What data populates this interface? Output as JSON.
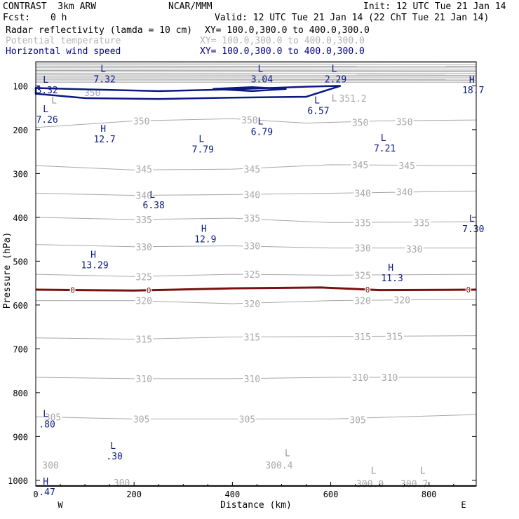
{
  "header": {
    "title": "CONTRAST  3km ARW",
    "source": "NCAR/MMM",
    "init": "Init: 12 UTC Tue 21 Jan 14",
    "fcst_label": "Fcst:",
    "fcst_value": "0 h",
    "valid": "Valid: 12 UTC Tue 21 Jan 14 (22 ChT Tue 21 Jan 14)"
  },
  "legend": [
    {
      "name": "Radar reflectivity (lamda = 10 cm)",
      "xy": "XY= 100.0,300.0 to 400.0,300.0",
      "color": "#000000"
    },
    {
      "name": "Potential temperature",
      "xy": "XY= 100.0,300.0 to 400.0,300.0",
      "color": "#b4b4b4"
    },
    {
      "name": "Horizontal wind speed",
      "xy": "XY= 100.0,300.0 to 400.0,300.0",
      "color": "#000080"
    }
  ],
  "colors": {
    "theta": "#a8a8a8",
    "wind": "#0a1a80",
    "zeroline": "#7a1010",
    "axis": "#000000"
  },
  "chart_data": {
    "type": "line",
    "xlabel": "Distance (km)",
    "ylabel": "Pressure (hPa)",
    "xlim": [
      0,
      896
    ],
    "ylim": [
      1013,
      45
    ],
    "y_scale": "linear, inverted",
    "xticks": [
      "0",
      "200",
      "400",
      "600",
      "800"
    ],
    "xtick_values": [
      0,
      200,
      400,
      600,
      800
    ],
    "yticks": [
      "100",
      "200",
      "300",
      "400",
      "500",
      "600",
      "700",
      "800",
      "900",
      "1000"
    ],
    "ytick_values": [
      100,
      200,
      300,
      400,
      500,
      600,
      700,
      800,
      900,
      1000
    ],
    "end_labels": {
      "left": "W",
      "right": "E"
    },
    "theta_contours": [
      {
        "level": 350,
        "x": [
          0,
          200,
          400,
          550,
          700,
          896
        ],
        "y": [
          195,
          180,
          175,
          185,
          180,
          178
        ]
      },
      {
        "level": 345,
        "x": [
          0,
          200,
          400,
          600,
          896
        ],
        "y": [
          282,
          292,
          290,
          280,
          282
        ]
      },
      {
        "level": 340,
        "x": [
          0,
          200,
          400,
          600,
          896
        ],
        "y": [
          345,
          350,
          348,
          345,
          340
        ]
      },
      {
        "level": 335,
        "x": [
          0,
          200,
          400,
          600,
          896
        ],
        "y": [
          400,
          405,
          402,
          412,
          410
        ]
      },
      {
        "level": 330,
        "x": [
          0,
          200,
          400,
          600,
          896
        ],
        "y": [
          462,
          467,
          465,
          470,
          470
        ]
      },
      {
        "level": 325,
        "x": [
          0,
          200,
          400,
          600,
          896
        ],
        "y": [
          530,
          535,
          530,
          532,
          530
        ]
      },
      {
        "level": 320,
        "x": [
          0,
          200,
          400,
          600,
          896
        ],
        "y": [
          590,
          590,
          597,
          590,
          587
        ]
      },
      {
        "level": 315,
        "x": [
          0,
          200,
          400,
          600,
          896
        ],
        "y": [
          675,
          678,
          673,
          672,
          670
        ]
      },
      {
        "level": 310,
        "x": [
          0,
          200,
          400,
          600,
          896
        ],
        "y": [
          765,
          768,
          768,
          765,
          765
        ]
      },
      {
        "level": 305,
        "x": [
          0,
          200,
          400,
          600,
          896
        ],
        "y": [
          855,
          860,
          860,
          860,
          850
        ]
      }
    ],
    "theta_labels": [
      {
        "text": "350",
        "x": 215,
        "p": 180
      },
      {
        "text": "350",
        "x": 435,
        "p": 178
      },
      {
        "text": "350",
        "x": 660,
        "p": 183
      },
      {
        "text": "350",
        "x": 750,
        "p": 182
      },
      {
        "text": "345",
        "x": 220,
        "p": 290
      },
      {
        "text": "345",
        "x": 440,
        "p": 290
      },
      {
        "text": "345",
        "x": 660,
        "p": 280
      },
      {
        "text": "345",
        "x": 755,
        "p": 282
      },
      {
        "text": "340",
        "x": 220,
        "p": 350
      },
      {
        "text": "340",
        "x": 440,
        "p": 348
      },
      {
        "text": "340",
        "x": 665,
        "p": 345
      },
      {
        "text": "340",
        "x": 750,
        "p": 342
      },
      {
        "text": "335",
        "x": 220,
        "p": 405
      },
      {
        "text": "335",
        "x": 440,
        "p": 402
      },
      {
        "text": "335",
        "x": 665,
        "p": 412
      },
      {
        "text": "335",
        "x": 785,
        "p": 412
      },
      {
        "text": "330",
        "x": 220,
        "p": 467
      },
      {
        "text": "330",
        "x": 440,
        "p": 465
      },
      {
        "text": "330",
        "x": 665,
        "p": 470
      },
      {
        "text": "330",
        "x": 770,
        "p": 472
      },
      {
        "text": "325",
        "x": 220,
        "p": 535
      },
      {
        "text": "325",
        "x": 440,
        "p": 530
      },
      {
        "text": "325",
        "x": 665,
        "p": 532
      },
      {
        "text": "320",
        "x": 220,
        "p": 590
      },
      {
        "text": "320",
        "x": 440,
        "p": 597
      },
      {
        "text": "320",
        "x": 665,
        "p": 590
      },
      {
        "text": "320",
        "x": 745,
        "p": 588
      },
      {
        "text": "315",
        "x": 220,
        "p": 678
      },
      {
        "text": "315",
        "x": 440,
        "p": 673
      },
      {
        "text": "315",
        "x": 665,
        "p": 672
      },
      {
        "text": "315",
        "x": 730,
        "p": 671
      },
      {
        "text": "310",
        "x": 220,
        "p": 768
      },
      {
        "text": "310",
        "x": 440,
        "p": 768
      },
      {
        "text": "310",
        "x": 660,
        "p": 765
      },
      {
        "text": "310",
        "x": 720,
        "p": 765
      },
      {
        "text": "305",
        "x": 35,
        "p": 855
      },
      {
        "text": "305",
        "x": 215,
        "p": 860
      },
      {
        "text": "305",
        "x": 430,
        "p": 860
      },
      {
        "text": "305",
        "x": 655,
        "p": 862
      },
      {
        "text": "300",
        "x": 30,
        "p": 965
      },
      {
        "text": "300",
        "x": 175,
        "p": 1005
      },
      {
        "text": "350",
        "x": 115,
        "p": 115
      },
      {
        "text": "351.2",
        "x": 645,
        "p": 128
      },
      {
        "text": "300.4",
        "x": 495,
        "p": 965
      },
      {
        "text": "300.0",
        "x": 680,
        "p": 1007
      },
      {
        "text": "300.7",
        "x": 770,
        "p": 1007
      }
    ],
    "extrema": [
      {
        "type": "L",
        "value": "7.32",
        "x": 120,
        "p": 68,
        "color": "#0a1a80"
      },
      {
        "type": "L",
        "value": "3.04",
        "x": 440,
        "p": 68,
        "color": "#0a1a80"
      },
      {
        "type": "L",
        "value": "2.29",
        "x": 590,
        "p": 68,
        "color": "#0a1a80"
      },
      {
        "type": "H",
        "value": "18.7",
        "x": 870,
        "p": 93,
        "color": "#0a1a80"
      },
      {
        "type": "L",
        "value": "3.32",
        "x": 3,
        "p": 93,
        "color": "#0a1a80"
      },
      {
        "type": "L",
        "value": "7.26",
        "x": 3,
        "p": 160,
        "color": "#0a1a80"
      },
      {
        "type": "L",
        "value": "6.57",
        "x": 555,
        "p": 140,
        "color": "#0a1a80"
      },
      {
        "type": "L",
        "value": "6.79",
        "x": 440,
        "p": 188,
        "color": "#0a1a80"
      },
      {
        "type": "H",
        "value": "12.7",
        "x": 120,
        "p": 205,
        "color": "#0a1a80"
      },
      {
        "type": "L",
        "value": "7.79",
        "x": 320,
        "p": 228,
        "color": "#0a1a80"
      },
      {
        "type": "L",
        "value": "7.21",
        "x": 690,
        "p": 226,
        "color": "#0a1a80"
      },
      {
        "type": "L",
        "value": "6.38",
        "x": 220,
        "p": 355,
        "color": "#0a1a80"
      },
      {
        "type": "L",
        "value": "7.30",
        "x": 870,
        "p": 410,
        "color": "#0a1a80"
      },
      {
        "type": "H",
        "value": "12.9",
        "x": 325,
        "p": 433,
        "color": "#0a1a80"
      },
      {
        "type": "H",
        "value": "13.29",
        "x": 100,
        "p": 492,
        "color": "#0a1a80"
      },
      {
        "type": "H",
        "value": "11.3",
        "x": 705,
        "p": 522,
        "color": "#0a1a80"
      },
      {
        "type": "L",
        "value": ".80",
        "x": 3,
        "p": 855,
        "color": "#0a1a80"
      },
      {
        "type": "L",
        "value": ".30",
        "x": 140,
        "p": 928,
        "color": "#0a1a80"
      },
      {
        "type": "H",
        "value": ".47",
        "x": 3,
        "p": 1010,
        "color": "#0a1a80"
      },
      {
        "type": "L",
        "value": "",
        "x": 590,
        "p": 135,
        "color": "#999999"
      },
      {
        "type": "L",
        "value": "",
        "x": 20,
        "p": 140,
        "color": "#999999"
      },
      {
        "type": "L",
        "value": "",
        "x": 495,
        "p": 945,
        "color": "#999999"
      },
      {
        "type": "L",
        "value": "",
        "x": 670,
        "p": 985,
        "color": "#999999"
      },
      {
        "type": "L",
        "value": "",
        "x": 770,
        "p": 985,
        "color": "#999999"
      }
    ],
    "zero_line": {
      "label": "0",
      "x": [
        0,
        200,
        400,
        580,
        700,
        896
      ],
      "y": [
        565,
        567,
        562,
        560,
        566,
        565
      ],
      "label_x": [
        75,
        230,
        675,
        880
      ]
    },
    "wind_contours": [
      {
        "x": [
          0,
          100,
          250,
          400,
          550,
          620,
          550,
          400,
          250,
          100,
          0
        ],
        "y": [
          105,
          108,
          112,
          108,
          102,
          100,
          125,
          127,
          130,
          128,
          118
        ]
      },
      {
        "x": [
          360,
          440,
          510,
          440,
          360
        ],
        "y": [
          107,
          103,
          107,
          112,
          107
        ]
      }
    ]
  }
}
